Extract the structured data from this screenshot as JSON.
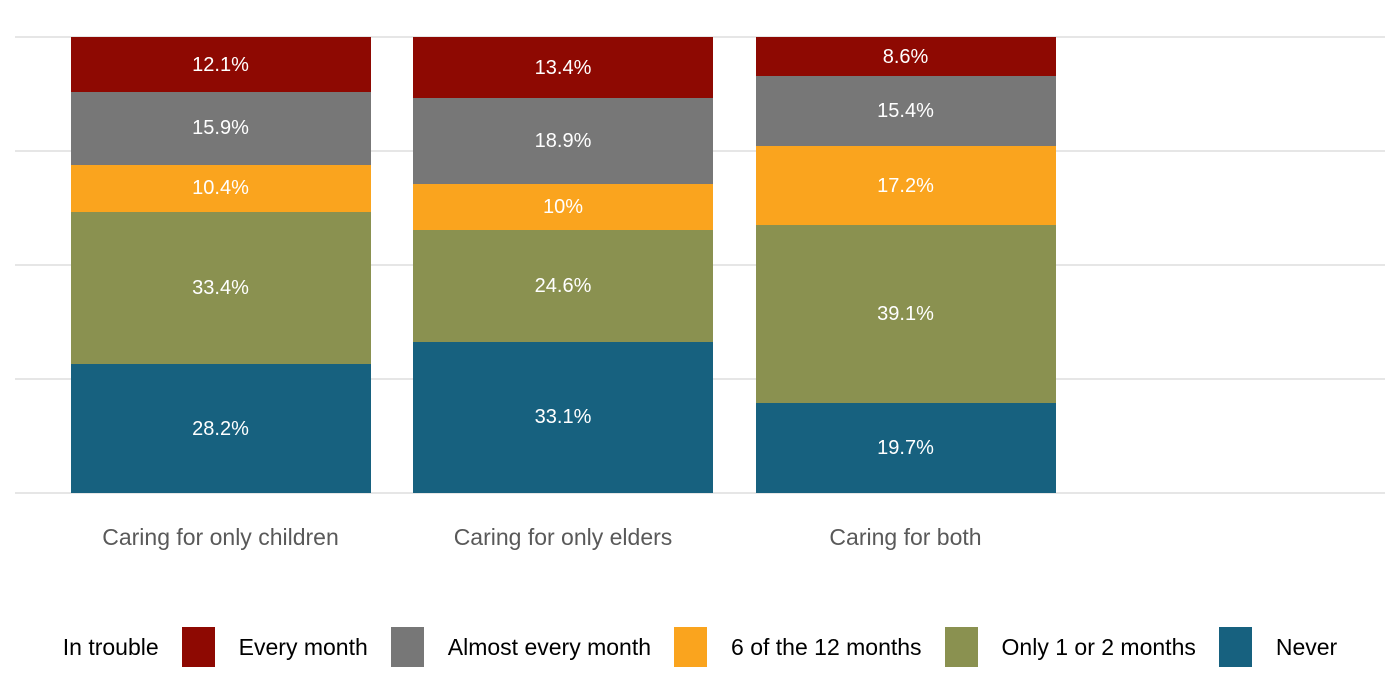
{
  "chart_data": {
    "type": "bar",
    "subtype": "stacked-100-percent-column",
    "title": "",
    "categories": [
      "Caring for only children",
      "Caring for only elders",
      "Caring for both"
    ],
    "series": [
      {
        "name": "Every month",
        "color": "#8E0902",
        "values": [
          12.1,
          13.4,
          8.6
        ],
        "labels": [
          "12.1%",
          "13.4%",
          "8.6%"
        ]
      },
      {
        "name": "Almost every month",
        "color": "#777777",
        "values": [
          15.9,
          18.9,
          15.4
        ],
        "labels": [
          "15.9%",
          "18.9%",
          "15.4%"
        ]
      },
      {
        "name": "6 of the 12 months",
        "color": "#FAA41E",
        "values": [
          10.4,
          10.0,
          17.2
        ],
        "labels": [
          "10.4%",
          "10%",
          "17.2%"
        ]
      },
      {
        "name": "Only 1 or 2 months",
        "color": "#8A9150",
        "values": [
          33.4,
          24.6,
          39.1
        ],
        "labels": [
          "33.4%",
          "24.6%",
          "39.1%"
        ]
      },
      {
        "name": "Never",
        "color": "#17617F",
        "values": [
          28.2,
          33.1,
          19.7
        ],
        "labels": [
          "28.2%",
          "33.1%",
          "19.7%"
        ]
      }
    ],
    "stack_order_note": "series order is top-to-bottom within each column",
    "legend": {
      "title": "In trouble",
      "position": "bottom"
    },
    "xlabel": "",
    "ylabel": "",
    "ylim": [
      0,
      100
    ],
    "yticks": [
      0,
      25,
      50,
      75,
      100
    ],
    "y_tick_labels_shown": false,
    "grid": "horizontal"
  },
  "style": {
    "background_color": "#FFFFFF",
    "gridline_color": "#E6E6E6",
    "bar_label_color": "#FFFFFF",
    "axis_label_color": "#595959",
    "legend_text_color": "#000000"
  }
}
